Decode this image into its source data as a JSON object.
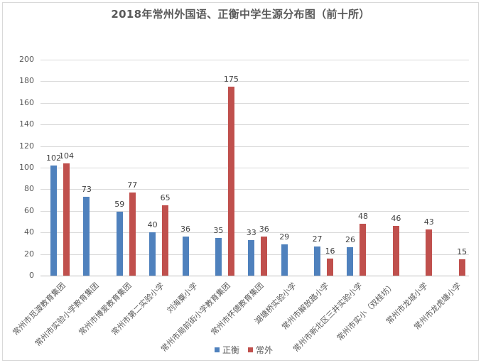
{
  "chart_data": {
    "type": "bar",
    "title": "2018年常州外国语、正衡中学生源分布图（前十所）",
    "xlabel": "",
    "ylabel": "",
    "ylim": [
      0,
      200
    ],
    "yticks": [
      0,
      20,
      40,
      60,
      80,
      100,
      120,
      140,
      160,
      180,
      200
    ],
    "grid": true,
    "legend_position": "bottom",
    "categories": [
      "常州市觅渡教育集团",
      "常州市实验小学教育集团",
      "常州市博爱教育集团",
      "常州市第二实验小学",
      "刘海粟小学",
      "常州市局前街小学教育集团",
      "常州市怀德教育集团",
      "湖塘桥实验小学",
      "常州市解放路小学",
      "常州市新北区三井实验小学",
      "常州市实小（双桂坊）",
      "常州市龙城小学",
      "常州市龙虎塘小学"
    ],
    "series": [
      {
        "name": "正衡",
        "color": "#4f81bd",
        "values": [
          102,
          73,
          59,
          40,
          36,
          35,
          33,
          29,
          27,
          26,
          null,
          null,
          null
        ]
      },
      {
        "name": "常外",
        "color": "#c0504d",
        "values": [
          104,
          null,
          77,
          65,
          null,
          175,
          36,
          null,
          16,
          48,
          46,
          43,
          15
        ]
      }
    ]
  },
  "legend": {
    "items": [
      {
        "label": "正衡",
        "color": "#4f81bd"
      },
      {
        "label": "常外",
        "color": "#c0504d"
      }
    ]
  }
}
